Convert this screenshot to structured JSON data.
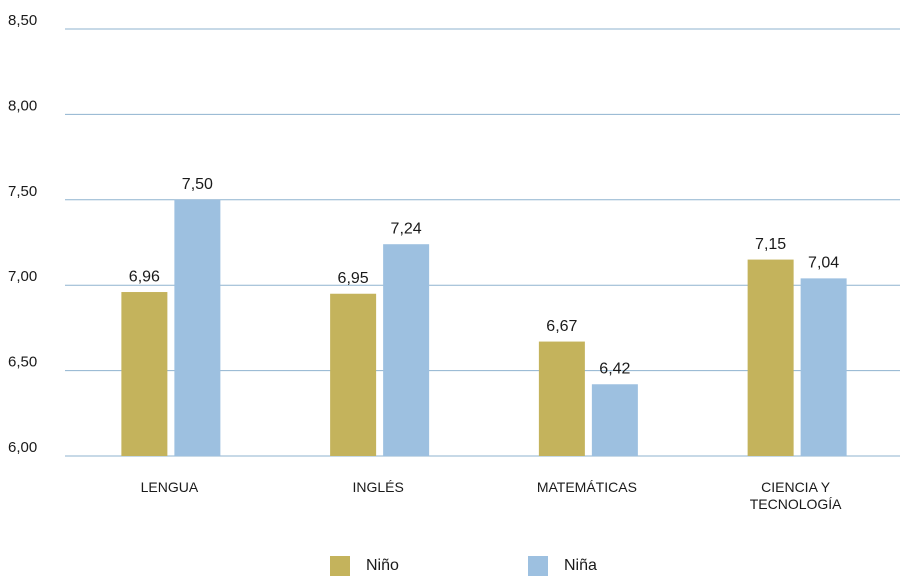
{
  "chart_data": {
    "type": "bar",
    "categories": [
      "LENGUA",
      "INGLÉS",
      "MATEMÁTICAS",
      "CIENCIA Y TECNOLOGÍA"
    ],
    "series": [
      {
        "name": "Niño",
        "color": "#c4b35c",
        "values": [
          6.96,
          6.95,
          6.67,
          7.15
        ],
        "value_labels": [
          "6,96",
          "6,95",
          "6,67",
          "7,15"
        ]
      },
      {
        "name": "Niña",
        "color": "#9dc0e0",
        "values": [
          7.5,
          7.24,
          6.42,
          7.04
        ],
        "value_labels": [
          "7,50",
          "7,24",
          "6,42",
          "7,04"
        ]
      }
    ],
    "ylim": [
      6.0,
      8.5
    ],
    "yticks": [
      {
        "value": 6.0,
        "label": "6,00"
      },
      {
        "value": 6.5,
        "label": "6,50"
      },
      {
        "value": 7.0,
        "label": "7,00"
      },
      {
        "value": 7.5,
        "label": "7,50"
      },
      {
        "value": 8.0,
        "label": "8,00"
      },
      {
        "value": 8.5,
        "label": "8,50"
      }
    ],
    "grid": true,
    "legend": "bottom"
  }
}
